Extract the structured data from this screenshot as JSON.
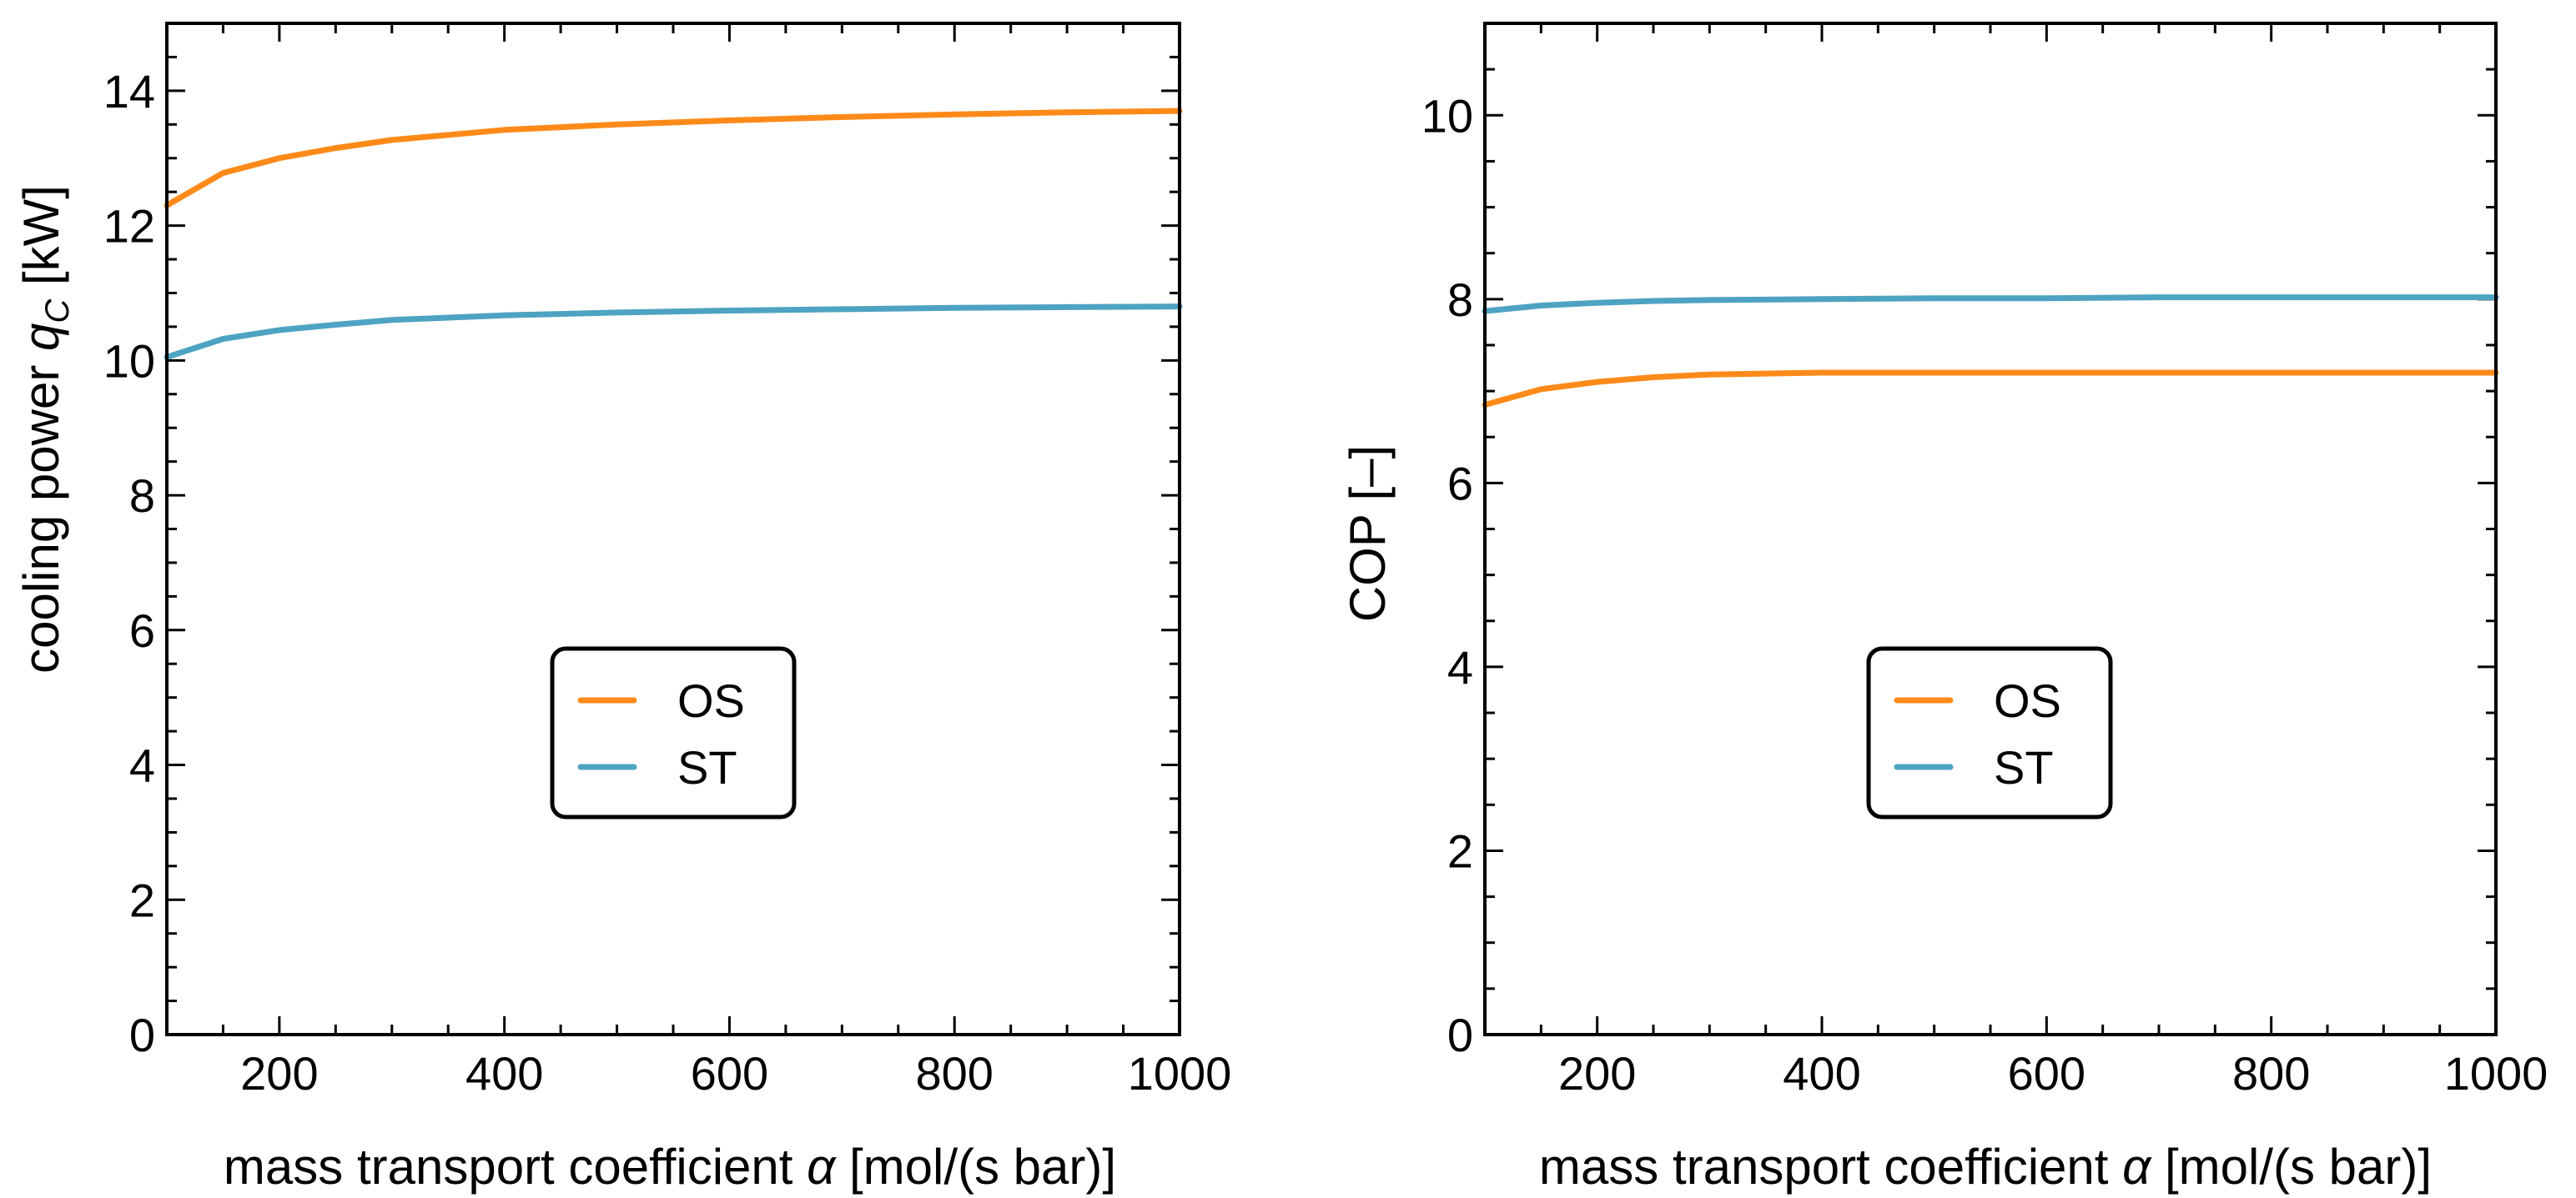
{
  "chart_data": [
    {
      "type": "line",
      "title": "",
      "xlabel": "mass transport coefficient α [mol/(s bar)]",
      "ylabel": "cooling power q_C [kW]",
      "ylabel_main": "cooling power ",
      "ylabel_symbol": "q",
      "ylabel_subscript": "C",
      "ylabel_unit": " [kW]",
      "xlabel_main": "mass transport coefficient ",
      "xlabel_symbol": "α",
      "xlabel_unit": " [mol/(s bar)]",
      "xlim": [
        100,
        1000
      ],
      "ylim": [
        0,
        15
      ],
      "xticks": [
        200,
        400,
        600,
        800,
        1000
      ],
      "yticks": [
        0,
        2,
        4,
        6,
        8,
        10,
        12,
        14
      ],
      "legend": "center",
      "series": [
        {
          "name": "OS",
          "color": "#ff8a19",
          "x": [
            100,
            150,
            200,
            250,
            300,
            400,
            500,
            600,
            700,
            800,
            900,
            1000
          ],
          "y": [
            12.3,
            12.78,
            13.0,
            13.15,
            13.27,
            13.42,
            13.5,
            13.56,
            13.61,
            13.65,
            13.68,
            13.7
          ]
        },
        {
          "name": "ST",
          "color": "#4ea3c2",
          "x": [
            100,
            150,
            200,
            250,
            300,
            400,
            500,
            600,
            700,
            800,
            900,
            1000
          ],
          "y": [
            10.05,
            10.32,
            10.45,
            10.53,
            10.6,
            10.67,
            10.71,
            10.74,
            10.76,
            10.78,
            10.79,
            10.8
          ]
        }
      ]
    },
    {
      "type": "line",
      "title": "",
      "xlabel": "mass transport coefficient α [mol/(s bar)]",
      "ylabel": "COP [–]",
      "ylabel_main": "COP [–]",
      "xlabel_main": "mass transport coefficient ",
      "xlabel_symbol": "α",
      "xlabel_unit": " [mol/(s bar)]",
      "xlim": [
        100,
        1000
      ],
      "ylim": [
        0,
        11
      ],
      "xticks": [
        200,
        400,
        600,
        800,
        1000
      ],
      "yticks": [
        0,
        2,
        4,
        6,
        8,
        10
      ],
      "legend": "center",
      "series": [
        {
          "name": "OS",
          "color": "#ff8a19",
          "x": [
            100,
            150,
            200,
            250,
            300,
            350,
            400,
            500,
            600,
            700,
            800,
            900,
            1000
          ],
          "y": [
            6.85,
            7.02,
            7.1,
            7.15,
            7.18,
            7.19,
            7.2,
            7.2,
            7.2,
            7.2,
            7.2,
            7.2,
            7.2
          ]
        },
        {
          "name": "ST",
          "color": "#4ea3c2",
          "x": [
            100,
            150,
            200,
            250,
            300,
            400,
            500,
            600,
            700,
            800,
            900,
            1000
          ],
          "y": [
            7.87,
            7.93,
            7.96,
            7.98,
            7.99,
            8.0,
            8.01,
            8.01,
            8.02,
            8.02,
            8.02,
            8.02
          ]
        }
      ]
    }
  ]
}
